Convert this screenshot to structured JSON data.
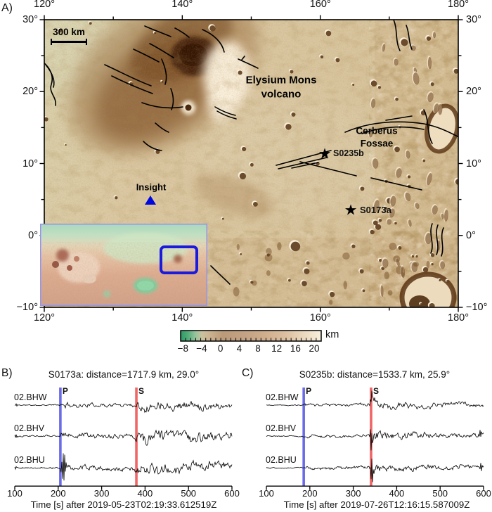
{
  "panel_a": {
    "label": "A)",
    "scale_bar_label": "300 km",
    "volcano_label_line1": "Elysium Mons",
    "volcano_label_line2": "volcano",
    "fossae_label_line1": "Cerberus",
    "fossae_label_line2": "Fossae",
    "lander_label": "Insight",
    "event_s0235b_label": "S0235b",
    "event_s0173a_label": "S0173a",
    "lon_ticks": [
      "120°",
      "140°",
      "160°",
      "180°"
    ],
    "lat_ticks": [
      "30°",
      "20°",
      "10°",
      "0°",
      "−10°"
    ],
    "colorbar": {
      "tick_labels": [
        "−8",
        "−4",
        "0",
        "4",
        "8",
        "12",
        "16",
        "20"
      ],
      "tick_values": [
        -8,
        -4,
        0,
        4,
        8,
        12,
        16,
        20
      ],
      "unit": "km"
    },
    "icons": {
      "event_star_glyph": "★"
    },
    "colors": {
      "lander_marker": "#0008dd",
      "inset_border": "#9595ea",
      "inset_region_box": "#1b1bdd",
      "event_marker": "#000000"
    }
  },
  "panel_b_label": "B)",
  "panel_c_label": "C)",
  "chart_data": [
    {
      "panel": "B",
      "type": "line",
      "title": "S0173a: distance=1717.9 km, 29.0°",
      "xlabel": "Time [s] after 2019-05-23T02:19:33.612519Z",
      "xlim": [
        100,
        600
      ],
      "xticks": [
        100,
        200,
        300,
        400,
        500,
        600
      ],
      "traces": [
        "02.BHW",
        "02.BHV",
        "02.BHU"
      ],
      "phases": [
        {
          "label": "P",
          "time": 205,
          "color": "#6b6be8"
        },
        {
          "label": "S",
          "time": 380,
          "color": "#f06565"
        }
      ],
      "amplitude_envelope": [
        [
          100,
          1.0
        ],
        [
          203,
          1.0
        ],
        [
          207,
          4.5
        ],
        [
          235,
          3.0
        ],
        [
          375,
          2.7
        ],
        [
          382,
          8.0
        ],
        [
          405,
          7.0
        ],
        [
          600,
          4.6
        ]
      ],
      "trace_scale": {
        "02.BHW": 0.8,
        "02.BHV": 1.0,
        "02.BHU": 0.95
      },
      "spikes": [
        {
          "trace": "02.BHU",
          "time": 212,
          "amp": 22,
          "width": 5
        },
        {
          "trace": "02.BHW",
          "time": 103,
          "amp": 2.5,
          "width": 3
        },
        {
          "trace": "02.BHV",
          "time": 103,
          "amp": 2.5,
          "width": 3
        },
        {
          "trace": "02.BHU",
          "time": 103,
          "amp": 2.5,
          "width": 3
        }
      ]
    },
    {
      "panel": "C",
      "type": "line",
      "title": "S0235b: distance=1533.7 km, 25.9°",
      "xlabel": "Time [s] after 2019-07-26T12:16:15.587009Z",
      "xlim": [
        100,
        600
      ],
      "xticks": [
        100,
        200,
        300,
        400,
        500,
        600
      ],
      "traces": [
        "02.BHW",
        "02.BHV",
        "02.BHU"
      ],
      "phases": [
        {
          "label": "P",
          "time": 186,
          "color": "#6b6be8"
        },
        {
          "label": "S",
          "time": 341,
          "color": "#f06565"
        }
      ],
      "amplitude_envelope": [
        [
          100,
          0.7
        ],
        [
          184,
          0.7
        ],
        [
          189,
          1.8
        ],
        [
          336,
          1.7
        ],
        [
          342,
          9.0
        ],
        [
          350,
          6.0
        ],
        [
          370,
          4.2
        ],
        [
          555,
          3.0
        ],
        [
          600,
          2.8
        ]
      ],
      "trace_scale": {
        "02.BHW": 0.9,
        "02.BHV": 1.0,
        "02.BHU": 0.95
      },
      "spikes": [
        {
          "trace": "02.BHV",
          "time": 342,
          "amp": 24,
          "width": 3
        },
        {
          "trace": "02.BHU",
          "time": 343,
          "amp": 19,
          "width": 3
        },
        {
          "trace": "02.BHW",
          "time": 342,
          "amp": 7,
          "width": 3
        },
        {
          "trace": "02.BHV",
          "time": 592,
          "amp": 7,
          "width": 3
        },
        {
          "trace": "02.BHU",
          "time": 594,
          "amp": 6,
          "width": 3
        }
      ]
    }
  ]
}
